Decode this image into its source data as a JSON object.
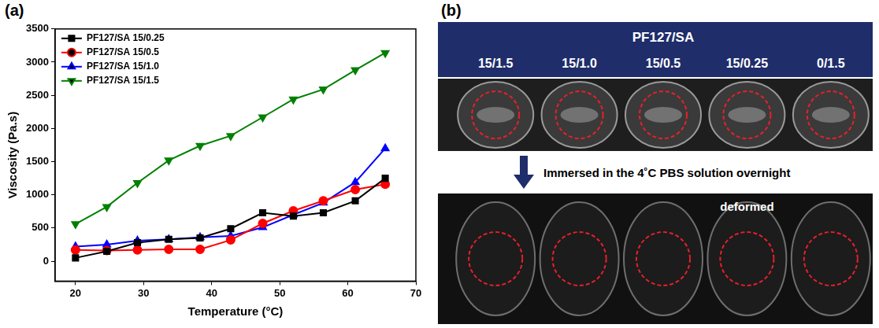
{
  "chart_data": {
    "type": "line",
    "panel_label": "(a)",
    "x_label": "Temperature (°C)",
    "y_label": "Viscosity (Pa.s)",
    "x": [
      20,
      24.6,
      29.1,
      33.7,
      38.3,
      42.8,
      47.5,
      52,
      56.4,
      61.1,
      65.5
    ],
    "series": [
      {
        "name": "PF127/SA 15/0.25",
        "color": "#000000",
        "marker": "square",
        "values": [
          50,
          150,
          280,
          330,
          350,
          490,
          730,
          680,
          730,
          910,
          1250
        ]
      },
      {
        "name": "PF127/SA 15/0.5",
        "color": "#ff0000",
        "marker": "circle",
        "values": [
          170,
          160,
          170,
          180,
          180,
          320,
          570,
          760,
          910,
          1080,
          1160
        ]
      },
      {
        "name": "PF127/SA 15/1.0",
        "color": "#0000ff",
        "marker": "triangle",
        "values": [
          220,
          250,
          310,
          330,
          360,
          380,
          510,
          700,
          880,
          1190,
          1700
        ]
      },
      {
        "name": "PF127/SA 15/1.5",
        "color": "#008000",
        "marker": "triangle_down",
        "values": [
          560,
          820,
          1180,
          1520,
          1740,
          1890,
          2170,
          2440,
          2590,
          2880,
          3140
        ]
      }
    ],
    "xlim": [
      17,
      70
    ],
    "xticks": [
      20,
      30,
      40,
      50,
      60,
      70
    ],
    "ylim": [
      -300,
      3500
    ],
    "yticks": [
      0,
      500,
      1000,
      1500,
      2000,
      2500,
      3000,
      3500
    ],
    "grid": false,
    "legend": "upper left"
  },
  "panel_b": {
    "panel_label": "(b)",
    "header": "PF127/SA",
    "columns": [
      "15/1.5",
      "15/1.0",
      "15/0.5",
      "15/0.25",
      "0/1.5"
    ],
    "caption": "Immersed in the 4˚C PBS solution overnight",
    "after_labels": [
      null,
      null,
      null,
      "deformed",
      null
    ]
  }
}
